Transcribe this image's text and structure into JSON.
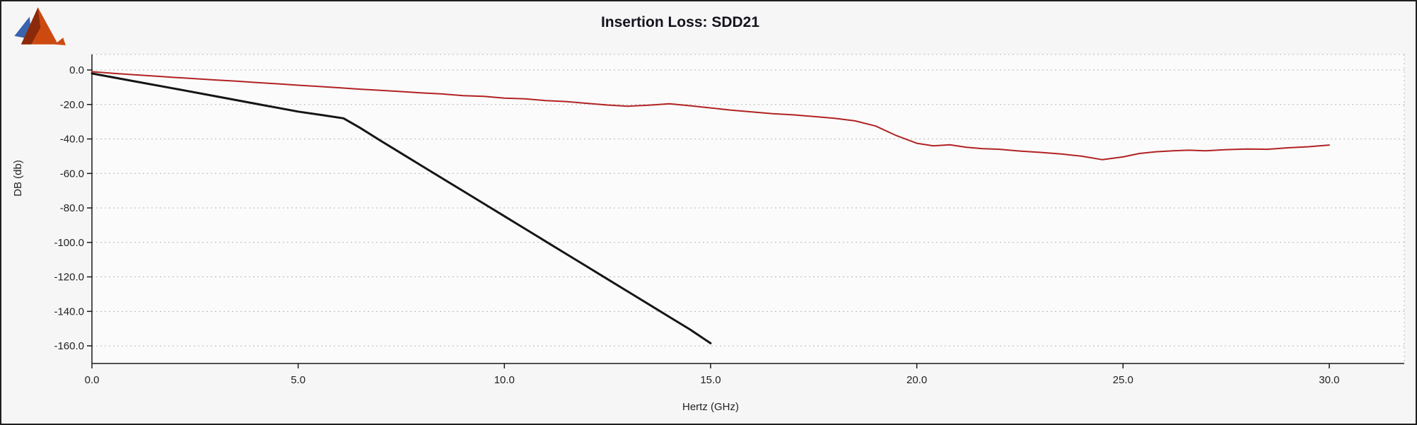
{
  "window": {
    "background": "#f6f6f6",
    "border_color": "#1f1f1f"
  },
  "icons": {
    "logo": "matlab-logo"
  },
  "chart_data": {
    "type": "line",
    "title": "Insertion Loss: SDD21",
    "xlabel": "Hertz (GHz)",
    "ylabel": "DB (db)",
    "xlim": [
      0,
      30
    ],
    "ylim": [
      -170,
      9
    ],
    "xticks": [
      0,
      5,
      10,
      15,
      20,
      25,
      30
    ],
    "xtick_labels": [
      "0.0",
      "5.0",
      "10.0",
      "15.0",
      "20.0",
      "25.0",
      "30.0"
    ],
    "yticks": [
      0,
      -20,
      -40,
      -60,
      -80,
      -100,
      -120,
      -140,
      -160
    ],
    "ytick_labels": [
      "0.0",
      "-20.0",
      "-40.0",
      "-60.0",
      "-80.0",
      "-100.0",
      "-120.0",
      "-140.0",
      "-160.0"
    ],
    "grid": "horizontal-dotted",
    "legend": "none",
    "series": [
      {
        "name": "black",
        "color": "#151515",
        "width": 3,
        "points": [
          [
            0,
            -2
          ],
          [
            1,
            -6.4
          ],
          [
            2,
            -10.8
          ],
          [
            3,
            -15.2
          ],
          [
            4,
            -19.7
          ],
          [
            5,
            -24.1
          ],
          [
            5.6,
            -26.2
          ],
          [
            6.1,
            -28
          ],
          [
            6.5,
            -33.5
          ],
          [
            7,
            -41
          ],
          [
            7.5,
            -48.3
          ],
          [
            8,
            -55.6
          ],
          [
            8.5,
            -62.9
          ],
          [
            9,
            -70.2
          ],
          [
            9.5,
            -77.5
          ],
          [
            10,
            -84.8
          ],
          [
            10.5,
            -92.1
          ],
          [
            11,
            -99.4
          ],
          [
            11.5,
            -106.7
          ],
          [
            12,
            -114
          ],
          [
            12.5,
            -121.3
          ],
          [
            13,
            -128.6
          ],
          [
            13.5,
            -135.9
          ],
          [
            14,
            -143.2
          ],
          [
            14.5,
            -150.5
          ],
          [
            15,
            -158.5
          ]
        ]
      },
      {
        "name": "red",
        "color": "#b22222",
        "width": 2,
        "points": [
          [
            0,
            -1
          ],
          [
            0.5,
            -1.9
          ],
          [
            1,
            -2.7
          ],
          [
            1.5,
            -3.5
          ],
          [
            2,
            -4.3
          ],
          [
            2.5,
            -5
          ],
          [
            3,
            -5.8
          ],
          [
            3.5,
            -6.5
          ],
          [
            4,
            -7.3
          ],
          [
            4.5,
            -8
          ],
          [
            5,
            -8.8
          ],
          [
            5.5,
            -9.5
          ],
          [
            6,
            -10.3
          ],
          [
            6.5,
            -11.1
          ],
          [
            7,
            -11.8
          ],
          [
            7.5,
            -12.5
          ],
          [
            8,
            -13.3
          ],
          [
            8.5,
            -13.9
          ],
          [
            9,
            -14.9
          ],
          [
            9.5,
            -15.3
          ],
          [
            10,
            -16.3
          ],
          [
            10.5,
            -16.7
          ],
          [
            11,
            -17.7
          ],
          [
            11.5,
            -18.3
          ],
          [
            12,
            -19.3
          ],
          [
            12.5,
            -20.3
          ],
          [
            13,
            -21
          ],
          [
            13.5,
            -20.4
          ],
          [
            14,
            -19.6
          ],
          [
            14.5,
            -20.7
          ],
          [
            15,
            -22
          ],
          [
            15.5,
            -23.3
          ],
          [
            16,
            -24.3
          ],
          [
            16.5,
            -25.3
          ],
          [
            17,
            -26
          ],
          [
            17.5,
            -27
          ],
          [
            18,
            -28
          ],
          [
            18.5,
            -29.5
          ],
          [
            19,
            -32.5
          ],
          [
            19.5,
            -38
          ],
          [
            20,
            -42.5
          ],
          [
            20.4,
            -44
          ],
          [
            20.8,
            -43.4
          ],
          [
            21.2,
            -44.8
          ],
          [
            21.6,
            -45.6
          ],
          [
            22,
            -46
          ],
          [
            22.5,
            -47
          ],
          [
            23,
            -47.8
          ],
          [
            23.5,
            -48.7
          ],
          [
            24,
            -50
          ],
          [
            24.5,
            -52
          ],
          [
            25,
            -50.4
          ],
          [
            25.4,
            -48.4
          ],
          [
            25.8,
            -47.4
          ],
          [
            26.2,
            -46.9
          ],
          [
            26.6,
            -46.5
          ],
          [
            27,
            -46.9
          ],
          [
            27.5,
            -46.2
          ],
          [
            28,
            -45.8
          ],
          [
            28.5,
            -46
          ],
          [
            29,
            -45.1
          ],
          [
            29.5,
            -44.5
          ],
          [
            30,
            -43.5
          ]
        ]
      }
    ]
  }
}
